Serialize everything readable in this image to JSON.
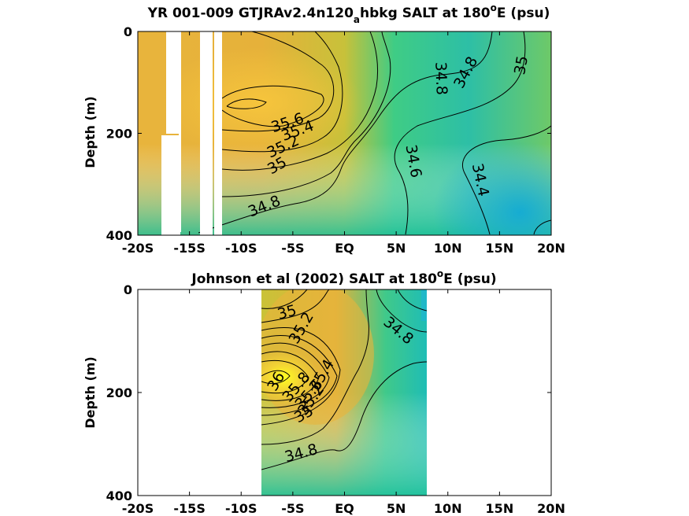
{
  "chart_data": [
    {
      "type": "contour",
      "title": "YR 001-009 GTJRAv2.4n120",
      "title_subscript": "a",
      "title_suffix": "hbkg SALT at 180",
      "title_superscript": "o",
      "title_end": "E (psu)",
      "xlabel": "",
      "ylabel": "Depth (m)",
      "xlim": [
        -20,
        20
      ],
      "ylim": [
        0,
        400
      ],
      "y_reversed": true,
      "x_tick_values": [
        -20,
        -15,
        -10,
        -5,
        0,
        5,
        10,
        15,
        20
      ],
      "x_ticks": [
        "-20S",
        "-15S",
        "-10S",
        "-5S",
        "EQ",
        "5N",
        "10N",
        "15N",
        "20N"
      ],
      "y_ticks": [
        "0",
        "200",
        "400"
      ],
      "y_tick_values": [
        0,
        200,
        400
      ],
      "missing_data_lat_ranges": [
        [
          -18.5,
          -17.0
        ],
        [
          -15.3,
          -13.8
        ],
        [
          -12.0,
          -11.2
        ]
      ],
      "contour_labels": [
        {
          "text": "35.6",
          "x": -5.5,
          "y": 185
        },
        {
          "text": "35.4",
          "x": -3.5,
          "y": 200
        },
        {
          "text": "35.2",
          "x": -6.0,
          "y": 230
        },
        {
          "text": "35",
          "x": -6.0,
          "y": 260
        },
        {
          "text": "34.8",
          "x": -7.5,
          "y": 345
        },
        {
          "text": "34.8",
          "x": 8.0,
          "y": 95
        },
        {
          "text": "34.8",
          "x": 11.5,
          "y": 85
        },
        {
          "text": "35",
          "x": 17.5,
          "y": 70
        },
        {
          "text": "34.6",
          "x": 6.5,
          "y": 265
        },
        {
          "text": "34.4",
          "x": 13.5,
          "y": 290
        }
      ]
    },
    {
      "type": "contour",
      "title": "Johnson et al (2002) SALT at 180",
      "title_superscript": "o",
      "title_end": "E (psu)",
      "xlabel": "",
      "ylabel": "Depth (m)",
      "xlim": [
        -20,
        20
      ],
      "ylim": [
        0,
        400
      ],
      "y_reversed": true,
      "data_lat_range": [
        -8,
        8
      ],
      "x_tick_values": [
        -20,
        -15,
        -10,
        -5,
        0,
        5,
        10,
        15,
        20
      ],
      "x_ticks": [
        "-20S",
        "-15S",
        "-10S",
        "-5S",
        "EQ",
        "5N",
        "10N",
        "15N",
        "20N"
      ],
      "y_ticks": [
        "0",
        "200",
        "400"
      ],
      "y_tick_values": [
        0,
        200,
        400
      ],
      "contour_labels": [
        {
          "text": "35",
          "x": -6.5,
          "y": 40
        },
        {
          "text": "35.2",
          "x": -5.0,
          "y": 70
        },
        {
          "text": "34.8",
          "x": 5.5,
          "y": 85
        },
        {
          "text": "36",
          "x": -6.5,
          "y": 175
        },
        {
          "text": "35.8",
          "x": -4.5,
          "y": 185
        },
        {
          "text": "35.6",
          "x": -3.5,
          "y": 195
        },
        {
          "text": "35.4",
          "x": -2.5,
          "y": 178
        },
        {
          "text": "35.2",
          "x": -3.5,
          "y": 210
        },
        {
          "text": "35",
          "x": -5.5,
          "y": 240
        },
        {
          "text": "34.8",
          "x": -5.5,
          "y": 320
        }
      ]
    }
  ]
}
